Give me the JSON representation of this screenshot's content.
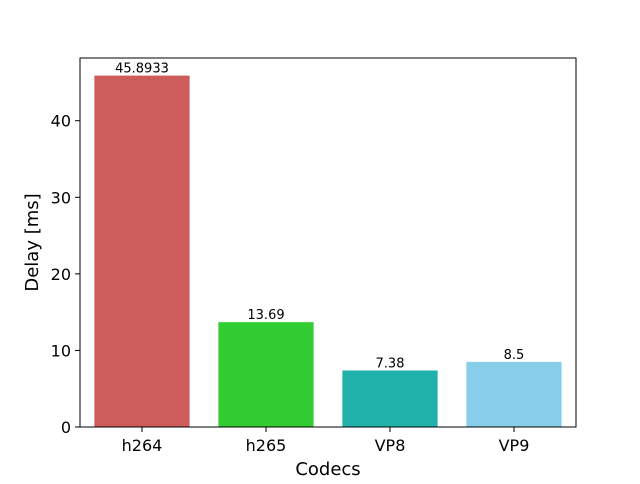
{
  "chart_data": {
    "type": "bar",
    "title": "",
    "xlabel": "Codecs",
    "ylabel": "Delay [ms]",
    "categories": [
      "h264",
      "h265",
      "VP8",
      "VP9"
    ],
    "values": [
      45.8933,
      13.69,
      7.38,
      8.5
    ],
    "value_labels": [
      "45.8933",
      "13.69",
      "7.38",
      "8.5"
    ],
    "colors": [
      "#cd5c5c",
      "#32cd32",
      "#20b2aa",
      "#87ceeb"
    ],
    "ylim": [
      0,
      48.19
    ],
    "yticks": [
      0,
      10,
      20,
      30,
      40
    ],
    "ytick_labels": [
      "0",
      "10",
      "20",
      "30",
      "40"
    ],
    "grid": false,
    "legend": "none"
  }
}
